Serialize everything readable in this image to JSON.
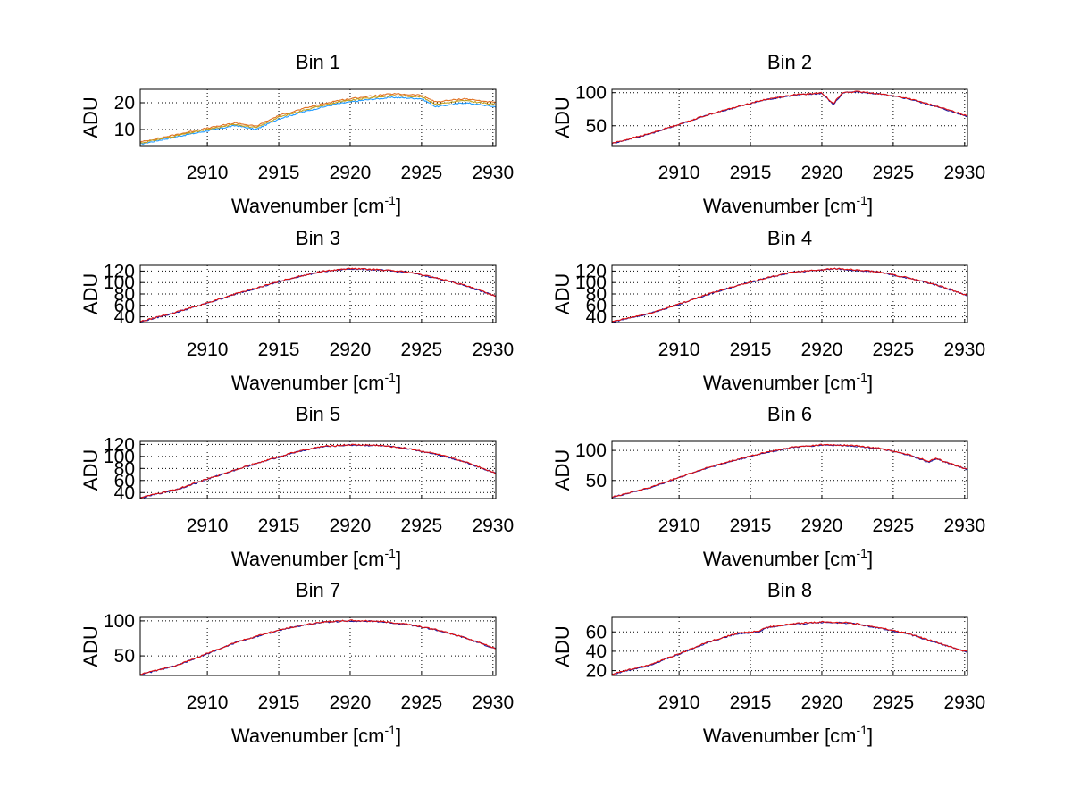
{
  "chart_data": [
    {
      "type": "line",
      "title": "Bin 1",
      "xlabel_text": "Wavenumber [cm",
      "xlabel_sup": "-1",
      "xlabel_close": "]",
      "ylabel": "ADU",
      "xlim": [
        2905.3,
        2930.2
      ],
      "ylim": [
        4,
        25
      ],
      "xticks": [
        2910,
        2915,
        2920,
        2925,
        2930
      ],
      "yticks": [
        10,
        20
      ],
      "grid": true,
      "series": [
        {
          "name": "trace-1",
          "color": "#1e9bff",
          "x": [
            2905.3,
            2908,
            2910,
            2912,
            2913.4,
            2915,
            2917,
            2919,
            2921,
            2923,
            2925,
            2926,
            2928,
            2930.2
          ],
          "y": [
            4.5,
            7.5,
            9.5,
            11.5,
            10,
            14,
            17,
            19.5,
            21,
            22,
            21.5,
            18.5,
            20,
            18.5
          ]
        },
        {
          "name": "trace-2",
          "color": "#e07020",
          "x": [
            2905.3,
            2908,
            2910,
            2912,
            2913.4,
            2915,
            2917,
            2919,
            2921,
            2923,
            2925,
            2926,
            2928,
            2930.2
          ],
          "y": [
            5.3,
            8.3,
            10.5,
            12.5,
            11.2,
            15.2,
            18.2,
            20.7,
            22.2,
            23.3,
            22.8,
            20.3,
            21.5,
            20
          ]
        },
        {
          "name": "trace-3",
          "color": "#c0a020",
          "x": [
            2905.3,
            2908,
            2910,
            2912,
            2913.4,
            2915,
            2917,
            2919,
            2921,
            2923,
            2925,
            2926,
            2928,
            2930.2
          ],
          "y": [
            4.9,
            7.9,
            10,
            12,
            10.6,
            14.6,
            17.6,
            20.1,
            21.6,
            22.7,
            22.2,
            19.5,
            20.8,
            19.3
          ]
        }
      ]
    },
    {
      "type": "line",
      "title": "Bin 2",
      "xlabel_text": "Wavenumber [cm",
      "xlabel_sup": "-1",
      "xlabel_close": "]",
      "ylabel": "ADU",
      "xlim": [
        2905.3,
        2930.2
      ],
      "ylim": [
        20,
        105
      ],
      "xticks": [
        2910,
        2915,
        2920,
        2925,
        2930
      ],
      "yticks": [
        50,
        100
      ],
      "grid": true,
      "series": [
        {
          "name": "trace-1",
          "color": "#1a1aa0",
          "x": [
            2905.3,
            2908,
            2910,
            2912,
            2914,
            2916,
            2918,
            2920,
            2920.8,
            2921.5,
            2922.5,
            2924,
            2926,
            2928,
            2930.2
          ],
          "y": [
            23,
            38,
            52,
            66,
            78,
            89,
            96,
            99,
            82,
            100,
            101,
            98,
            91,
            79,
            64
          ]
        },
        {
          "name": "trace-2",
          "color": "#e01010",
          "x": [
            2905.3,
            2908,
            2910,
            2912,
            2914,
            2916,
            2918,
            2920,
            2920.8,
            2921.5,
            2922.5,
            2924,
            2926,
            2928,
            2930.2
          ],
          "y": [
            23.5,
            38.5,
            52.5,
            66.5,
            78.5,
            89.5,
            96.5,
            99.5,
            84,
            100.5,
            101.5,
            98.5,
            91.5,
            79.5,
            65
          ]
        }
      ]
    },
    {
      "type": "line",
      "title": "Bin 3",
      "xlabel_text": "Wavenumber [cm",
      "xlabel_sup": "-1",
      "xlabel_close": "]",
      "ylabel": "ADU",
      "xlim": [
        2905.3,
        2930.2
      ],
      "ylim": [
        30,
        130
      ],
      "xticks": [
        2910,
        2915,
        2920,
        2925,
        2930
      ],
      "yticks": [
        40,
        60,
        80,
        100,
        120
      ],
      "grid": true,
      "series": [
        {
          "name": "trace-1",
          "color": "#1a1aa0",
          "x": [
            2905.3,
            2908,
            2910,
            2912,
            2914,
            2916,
            2918,
            2920,
            2922,
            2924,
            2926,
            2928,
            2930.2
          ],
          "y": [
            31,
            49,
            64,
            80,
            94,
            108,
            119,
            124,
            122,
            118,
            108,
            95,
            76
          ]
        },
        {
          "name": "trace-2",
          "color": "#e01010",
          "x": [
            2905.3,
            2908,
            2910,
            2912,
            2914,
            2916,
            2918,
            2920,
            2922,
            2924,
            2926,
            2928,
            2930.2
          ],
          "y": [
            31.5,
            49.5,
            64.5,
            80.5,
            94.5,
            108.5,
            119.5,
            124.5,
            122.5,
            118.5,
            108.5,
            95.5,
            76.5
          ]
        }
      ]
    },
    {
      "type": "line",
      "title": "Bin 4",
      "xlabel_text": "Wavenumber [cm",
      "xlabel_sup": "-1",
      "xlabel_close": "]",
      "ylabel": "ADU",
      "xlim": [
        2905.3,
        2930.2
      ],
      "ylim": [
        30,
        130
      ],
      "xticks": [
        2910,
        2915,
        2920,
        2925,
        2930
      ],
      "yticks": [
        40,
        60,
        80,
        100,
        120
      ],
      "grid": true,
      "series": [
        {
          "name": "trace-1",
          "color": "#1a1aa0",
          "x": [
            2905.3,
            2908,
            2910,
            2912,
            2914,
            2916,
            2918,
            2920,
            2921,
            2922,
            2924,
            2926,
            2928,
            2930.2
          ],
          "y": [
            31,
            46,
            62,
            79,
            94,
            107,
            118,
            122,
            124,
            122,
            118,
            108,
            96,
            77
          ]
        },
        {
          "name": "trace-2",
          "color": "#e01010",
          "x": [
            2905.3,
            2908,
            2910,
            2912,
            2914,
            2916,
            2918,
            2920,
            2921,
            2922,
            2924,
            2926,
            2928,
            2930.2
          ],
          "y": [
            31.5,
            46.5,
            62.5,
            79.5,
            94.5,
            107.5,
            118.5,
            122.5,
            124.5,
            122.5,
            118.5,
            108.5,
            96.5,
            77.5
          ]
        }
      ]
    },
    {
      "type": "line",
      "title": "Bin 5",
      "xlabel_text": "Wavenumber [cm",
      "xlabel_sup": "-1",
      "xlabel_close": "]",
      "ylabel": "ADU",
      "xlim": [
        2905.3,
        2930.2
      ],
      "ylim": [
        30,
        125
      ],
      "xticks": [
        2910,
        2915,
        2920,
        2925,
        2930
      ],
      "yticks": [
        40,
        60,
        80,
        100,
        120
      ],
      "grid": true,
      "series": [
        {
          "name": "trace-1",
          "color": "#1a1aa0",
          "x": [
            2905.3,
            2908,
            2910,
            2912,
            2914,
            2916,
            2918,
            2920,
            2922,
            2924,
            2926,
            2928,
            2930.2
          ],
          "y": [
            31,
            46,
            62,
            78,
            92,
            106,
            116,
            119,
            118,
            113,
            104,
            91,
            72
          ]
        },
        {
          "name": "trace-2",
          "color": "#e01010",
          "x": [
            2905.3,
            2908,
            2910,
            2912,
            2914,
            2916,
            2918,
            2920,
            2922,
            2924,
            2926,
            2928,
            2930.2
          ],
          "y": [
            31.5,
            46.5,
            62.5,
            78.5,
            92.5,
            106.5,
            116.5,
            119.5,
            118.5,
            113.5,
            104.5,
            91.5,
            72.5
          ]
        }
      ]
    },
    {
      "type": "line",
      "title": "Bin 6",
      "xlabel_text": "Wavenumber [cm",
      "xlabel_sup": "-1",
      "xlabel_close": "]",
      "ylabel": "ADU",
      "xlim": [
        2905.3,
        2930.2
      ],
      "ylim": [
        20,
        115
      ],
      "xticks": [
        2910,
        2915,
        2920,
        2925,
        2930
      ],
      "yticks": [
        50,
        100
      ],
      "grid": true,
      "series": [
        {
          "name": "trace-1",
          "color": "#1a1aa0",
          "x": [
            2905.3,
            2908,
            2910,
            2912,
            2914,
            2916,
            2918,
            2920,
            2922,
            2924,
            2926,
            2927.5,
            2928,
            2930.2
          ],
          "y": [
            22,
            38,
            55,
            71,
            84,
            96,
            105,
            109,
            108,
            103,
            93,
            80,
            86,
            68
          ]
        },
        {
          "name": "trace-2",
          "color": "#e01010",
          "x": [
            2905.3,
            2908,
            2910,
            2912,
            2914,
            2916,
            2918,
            2920,
            2922,
            2924,
            2926,
            2927.5,
            2928,
            2930.2
          ],
          "y": [
            22.5,
            38.5,
            55.5,
            71.5,
            84.5,
            96.5,
            105.5,
            109.5,
            108.5,
            103.5,
            93.5,
            82,
            86.5,
            68.5
          ]
        }
      ]
    },
    {
      "type": "line",
      "title": "Bin 7",
      "xlabel_text": "Wavenumber [cm",
      "xlabel_sup": "-1",
      "xlabel_close": "]",
      "ylabel": "ADU",
      "xlim": [
        2905.3,
        2930.2
      ],
      "ylim": [
        22,
        105
      ],
      "xticks": [
        2910,
        2915,
        2920,
        2925,
        2930
      ],
      "yticks": [
        50,
        100
      ],
      "grid": true,
      "series": [
        {
          "name": "trace-1",
          "color": "#1a1aa0",
          "x": [
            2905.3,
            2908,
            2910,
            2912,
            2914,
            2916,
            2918,
            2920,
            2922,
            2924,
            2926,
            2928,
            2930.2
          ],
          "y": [
            23,
            37,
            53,
            69,
            81,
            91,
            98,
            100,
            99,
            95,
            87,
            76,
            60
          ]
        },
        {
          "name": "trace-2",
          "color": "#e01010",
          "x": [
            2905.3,
            2908,
            2910,
            2912,
            2914,
            2916,
            2918,
            2920,
            2922,
            2924,
            2926,
            2928,
            2930.2
          ],
          "y": [
            23.5,
            37.5,
            53.5,
            69.5,
            81.5,
            91.5,
            98.5,
            100.5,
            99.5,
            95.5,
            87.5,
            76.5,
            60.5
          ]
        }
      ]
    },
    {
      "type": "line",
      "title": "Bin 8",
      "xlabel_text": "Wavenumber [cm",
      "xlabel_sup": "-1",
      "xlabel_close": "]",
      "ylabel": "ADU",
      "xlim": [
        2905.3,
        2930.2
      ],
      "ylim": [
        15,
        75
      ],
      "xticks": [
        2910,
        2915,
        2920,
        2925,
        2930
      ],
      "yticks": [
        20,
        40,
        60
      ],
      "grid": true,
      "series": [
        {
          "name": "trace-1",
          "color": "#1a1aa0",
          "x": [
            2905.3,
            2908,
            2910,
            2912,
            2914,
            2915.7,
            2916,
            2918,
            2920,
            2922,
            2924,
            2926,
            2928,
            2930.2
          ],
          "y": [
            16,
            26,
            37,
            49,
            58,
            60,
            64,
            68,
            70,
            69,
            64,
            58,
            49,
            39
          ]
        },
        {
          "name": "trace-2",
          "color": "#e01010",
          "x": [
            2905.3,
            2908,
            2910,
            2912,
            2914,
            2915.7,
            2916,
            2918,
            2920,
            2922,
            2924,
            2926,
            2928,
            2930.2
          ],
          "y": [
            16.4,
            26.4,
            37.4,
            49.4,
            58.4,
            61,
            64.4,
            68.4,
            70.4,
            69.4,
            64.4,
            58.4,
            49.4,
            39.4
          ]
        }
      ]
    }
  ]
}
